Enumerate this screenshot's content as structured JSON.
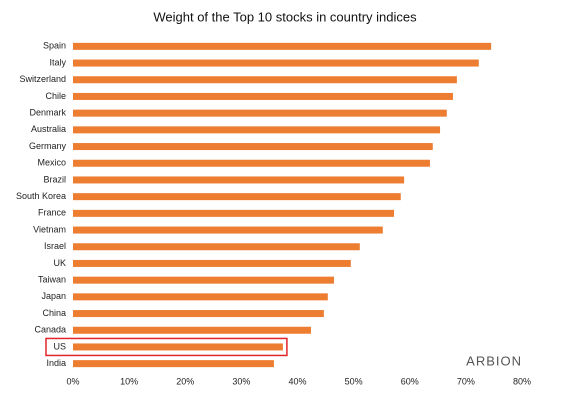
{
  "chart_data": {
    "type": "hbar",
    "title": "Weight of the Top 10 stocks in country indices",
    "categories": [
      "Spain",
      "Italy",
      "Switzerland",
      "Chile",
      "Denmark",
      "Australia",
      "Germany",
      "Mexico",
      "Brazil",
      "South Korea",
      "France",
      "Vietnam",
      "Israel",
      "UK",
      "Taiwan",
      "Japan",
      "China",
      "Canada",
      "US",
      "India"
    ],
    "values": [
      74.5,
      72.3,
      68.4,
      67.7,
      66.6,
      65.4,
      64.1,
      63.6,
      59.0,
      58.4,
      57.2,
      55.2,
      51.1,
      49.5,
      46.5,
      45.4,
      44.7,
      42.4,
      37.4,
      35.8
    ],
    "color": "#ed7d31",
    "xlim": [
      0,
      80
    ],
    "xticks": [
      {
        "value": 0,
        "label": "0%"
      },
      {
        "value": 10,
        "label": "10%"
      },
      {
        "value": 20,
        "label": "20%"
      },
      {
        "value": 30,
        "label": "30%"
      },
      {
        "value": 40,
        "label": "40%"
      },
      {
        "value": 50,
        "label": "50%"
      },
      {
        "value": 60,
        "label": "60%"
      },
      {
        "value": 70,
        "label": "70%"
      },
      {
        "value": 80,
        "label": "80%"
      }
    ],
    "grid": false,
    "highlight": 18,
    "highlight_color": "#e0262a",
    "watermark": "ARBION"
  }
}
